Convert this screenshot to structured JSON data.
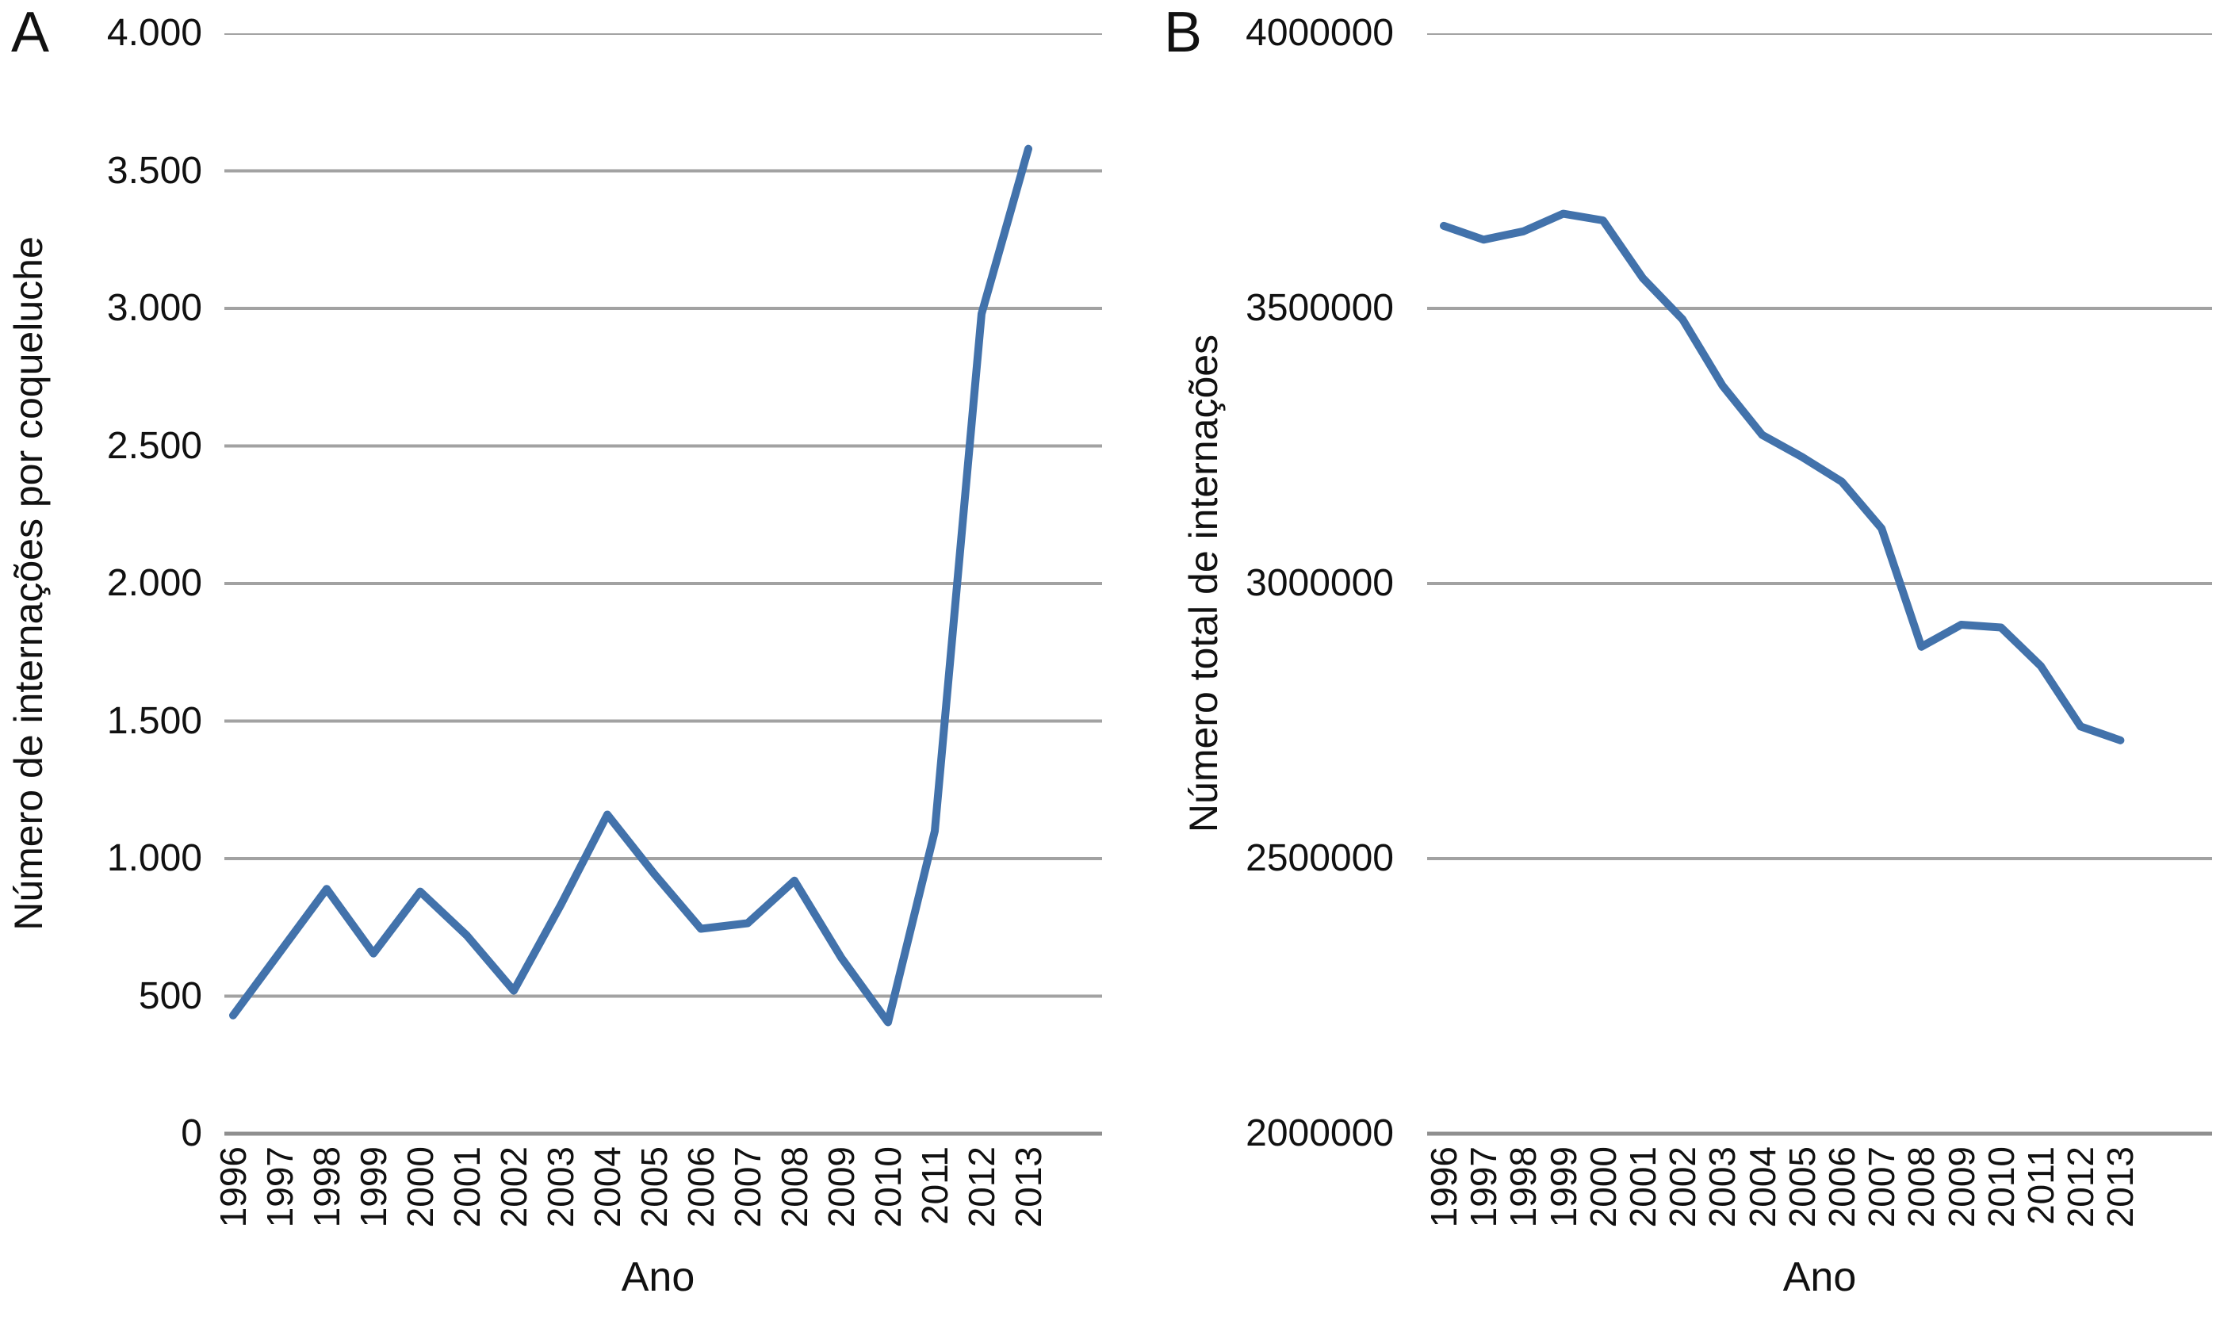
{
  "figure": {
    "background": "#ffffff",
    "text_color": "#111111",
    "gridline_color": "#a2a2a2",
    "baseline_color": "#8f8f8f"
  },
  "chart_data": [
    {
      "type": "line",
      "panel_label": "A",
      "title": "",
      "xlabel": "Ano",
      "ylabel": "Número de internações por coqueluche",
      "x": [
        1996,
        1997,
        1998,
        1999,
        2000,
        2001,
        2002,
        2003,
        2004,
        2005,
        2006,
        2007,
        2008,
        2009,
        2010,
        2011,
        2012,
        2013
      ],
      "values": [
        430,
        660,
        890,
        655,
        880,
        720,
        520,
        830,
        1160,
        945,
        745,
        765,
        920,
        640,
        405,
        1100,
        2980,
        3580
      ],
      "ylim": [
        0,
        4000
      ],
      "ytick_labels_top_to_bottom": [
        "4.000",
        "3.500",
        "3.000",
        "2.500",
        "2.000",
        "1.500",
        "1.000",
        "500",
        "0"
      ],
      "xtick_rotation_deg": 90,
      "grid": true,
      "legend": false,
      "line_color": "#4272ab"
    },
    {
      "type": "line",
      "panel_label": "B",
      "title": "",
      "xlabel": "Ano",
      "ylabel": "Número total de internações",
      "x": [
        1996,
        1997,
        1998,
        1999,
        2000,
        2001,
        2002,
        2003,
        2004,
        2005,
        2006,
        2007,
        2008,
        2009,
        2010,
        2011,
        2012,
        2013
      ],
      "values": [
        3650000,
        3625000,
        3640000,
        3672000,
        3660000,
        3555000,
        3480000,
        3360000,
        3270000,
        3230000,
        3185000,
        3100000,
        2885000,
        2925000,
        2920000,
        2850000,
        2740000,
        2715000
      ],
      "ylim": [
        2000000,
        4000000
      ],
      "ytick_labels_top_to_bottom": [
        "4000000",
        "3500000",
        "3000000",
        "2500000",
        "2000000"
      ],
      "xtick_rotation_deg": 90,
      "grid": true,
      "legend": false,
      "line_color": "#4272ab"
    }
  ]
}
